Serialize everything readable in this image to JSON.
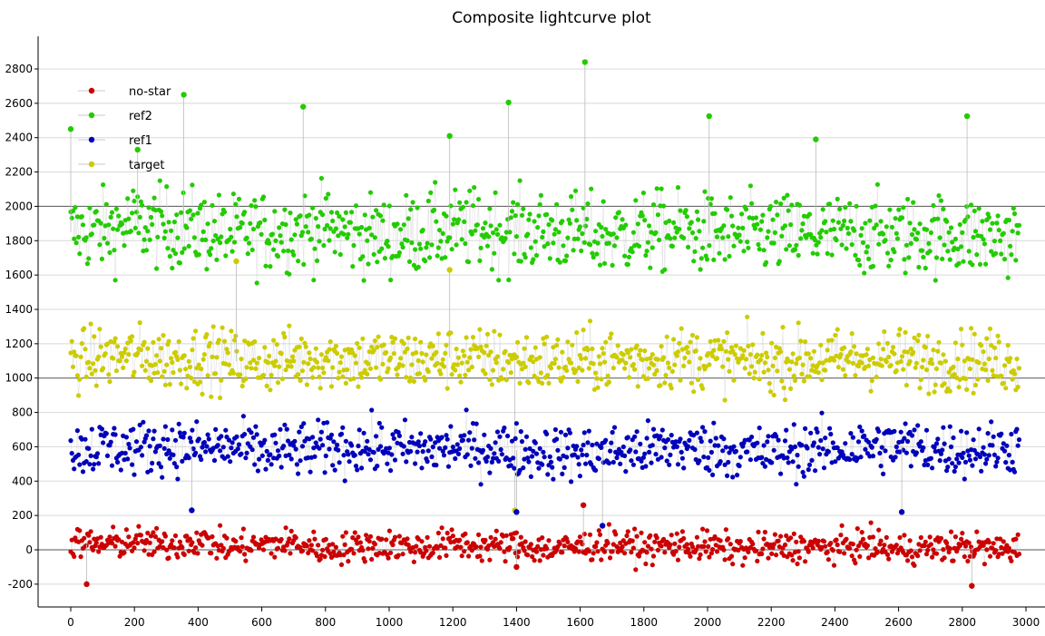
{
  "chart_data": {
    "type": "scatter",
    "title": "Composite lightcurve plot",
    "xlabel": "",
    "ylabel": "",
    "xlim": [
      -60,
      3000
    ],
    "ylim": [
      -270,
      2970
    ],
    "x_ticks": [
      0,
      200,
      400,
      600,
      800,
      1000,
      1200,
      1400,
      1600,
      1800,
      2000,
      2200,
      2400,
      2600,
      2800,
      3000
    ],
    "x_tick_labels": [
      "0",
      "200",
      "400",
      "600",
      "800",
      "1000",
      "1200",
      "1400",
      "1600",
      "1800",
      "2000",
      "2200",
      "2400",
      "2600",
      "2800",
      "3000"
    ],
    "y_ticks": [
      -200,
      0,
      200,
      400,
      600,
      800,
      1000,
      1200,
      1400,
      1600,
      1800,
      2000,
      2200,
      2400,
      2600,
      2800
    ],
    "y_tick_labels": [
      "-200",
      "0",
      "200",
      "400",
      "600",
      "800",
      "1000",
      "1200",
      "1400",
      "1600",
      "1800",
      "2000",
      "2200",
      "2400",
      "2600",
      "2800"
    ],
    "highlighted_lines": [
      0,
      1000,
      2000
    ],
    "grid": true,
    "legend_placement": "top-left",
    "series": [
      {
        "name": "no-star",
        "color": "#cc0000",
        "x": [
          0,
          100,
          200,
          300,
          400,
          500,
          600,
          700,
          800,
          900,
          1000,
          1100,
          1200,
          1300,
          1400,
          1500,
          1600,
          1700,
          1800,
          1900,
          2000,
          2100,
          2200,
          2300,
          2400,
          2500,
          2600,
          2700,
          2800,
          2900,
          2980
        ],
        "values": [
          40,
          30,
          50,
          20,
          60,
          10,
          30,
          40,
          0,
          20,
          30,
          10,
          40,
          20,
          30,
          0,
          20,
          40,
          10,
          30,
          20,
          0,
          10,
          20,
          10,
          30,
          0,
          10,
          20,
          0,
          10
        ],
        "spread": 80,
        "outliers": [
          [
            50,
            -200
          ],
          [
            1610,
            260
          ],
          [
            2830,
            -210
          ],
          [
            1400,
            -100
          ]
        ]
      },
      {
        "name": "ref2",
        "color": "#22cc00",
        "x": [
          0,
          100,
          200,
          300,
          400,
          500,
          600,
          700,
          800,
          900,
          1000,
          1100,
          1200,
          1300,
          1400,
          1500,
          1600,
          1700,
          1800,
          1900,
          2000,
          2100,
          2200,
          2300,
          2400,
          2500,
          2600,
          2700,
          2800,
          2900,
          2980
        ],
        "values": [
          1850,
          1860,
          1900,
          1880,
          1870,
          1830,
          1850,
          1860,
          1880,
          1840,
          1820,
          1850,
          1860,
          1870,
          1850,
          1860,
          1840,
          1830,
          1850,
          1860,
          1840,
          1830,
          1840,
          1830,
          1830,
          1840,
          1830,
          1840,
          1830,
          1820,
          1830
        ],
        "spread": 210,
        "outliers": [
          [
            0,
            2450
          ],
          [
            355,
            2650
          ],
          [
            730,
            2580
          ],
          [
            1375,
            2605
          ],
          [
            1615,
            2840
          ],
          [
            2005,
            2525
          ],
          [
            2815,
            2525
          ],
          [
            2340,
            2390
          ],
          [
            1190,
            2410
          ],
          [
            210,
            2330
          ]
        ]
      },
      {
        "name": "ref1",
        "color": "#0000bb",
        "x": [
          0,
          100,
          200,
          300,
          400,
          500,
          600,
          700,
          800,
          900,
          1000,
          1100,
          1200,
          1300,
          1400,
          1500,
          1600,
          1700,
          1800,
          1900,
          2000,
          2100,
          2200,
          2300,
          2400,
          2500,
          2600,
          2700,
          2800,
          2900,
          2980
        ],
        "values": [
          580,
          600,
          590,
          610,
          590,
          600,
          570,
          580,
          590,
          600,
          590,
          580,
          600,
          590,
          580,
          570,
          560,
          570,
          580,
          600,
          590,
          570,
          560,
          580,
          590,
          600,
          610,
          590,
          580,
          590,
          600
        ],
        "spread": 140,
        "outliers": [
          [
            2610,
            220
          ],
          [
            1670,
            140
          ],
          [
            1400,
            220
          ],
          [
            380,
            230
          ]
        ]
      },
      {
        "name": "target",
        "color": "#cccc00",
        "x": [
          0,
          100,
          200,
          300,
          400,
          500,
          600,
          700,
          800,
          900,
          1000,
          1100,
          1200,
          1300,
          1400,
          1500,
          1600,
          1700,
          1800,
          1900,
          2000,
          2100,
          2200,
          2300,
          2400,
          2500,
          2600,
          2700,
          2800,
          2900,
          2980
        ],
        "values": [
          1100,
          1120,
          1130,
          1110,
          1120,
          1100,
          1090,
          1110,
          1120,
          1100,
          1110,
          1100,
          1120,
          1110,
          1100,
          1090,
          1100,
          1110,
          1100,
          1120,
          1110,
          1100,
          1090,
          1110,
          1100,
          1120,
          1110,
          1100,
          1110,
          1100,
          1090
        ],
        "spread": 160,
        "outliers": [
          [
            1395,
            230
          ],
          [
            520,
            1680
          ],
          [
            1190,
            1630
          ]
        ]
      }
    ]
  }
}
